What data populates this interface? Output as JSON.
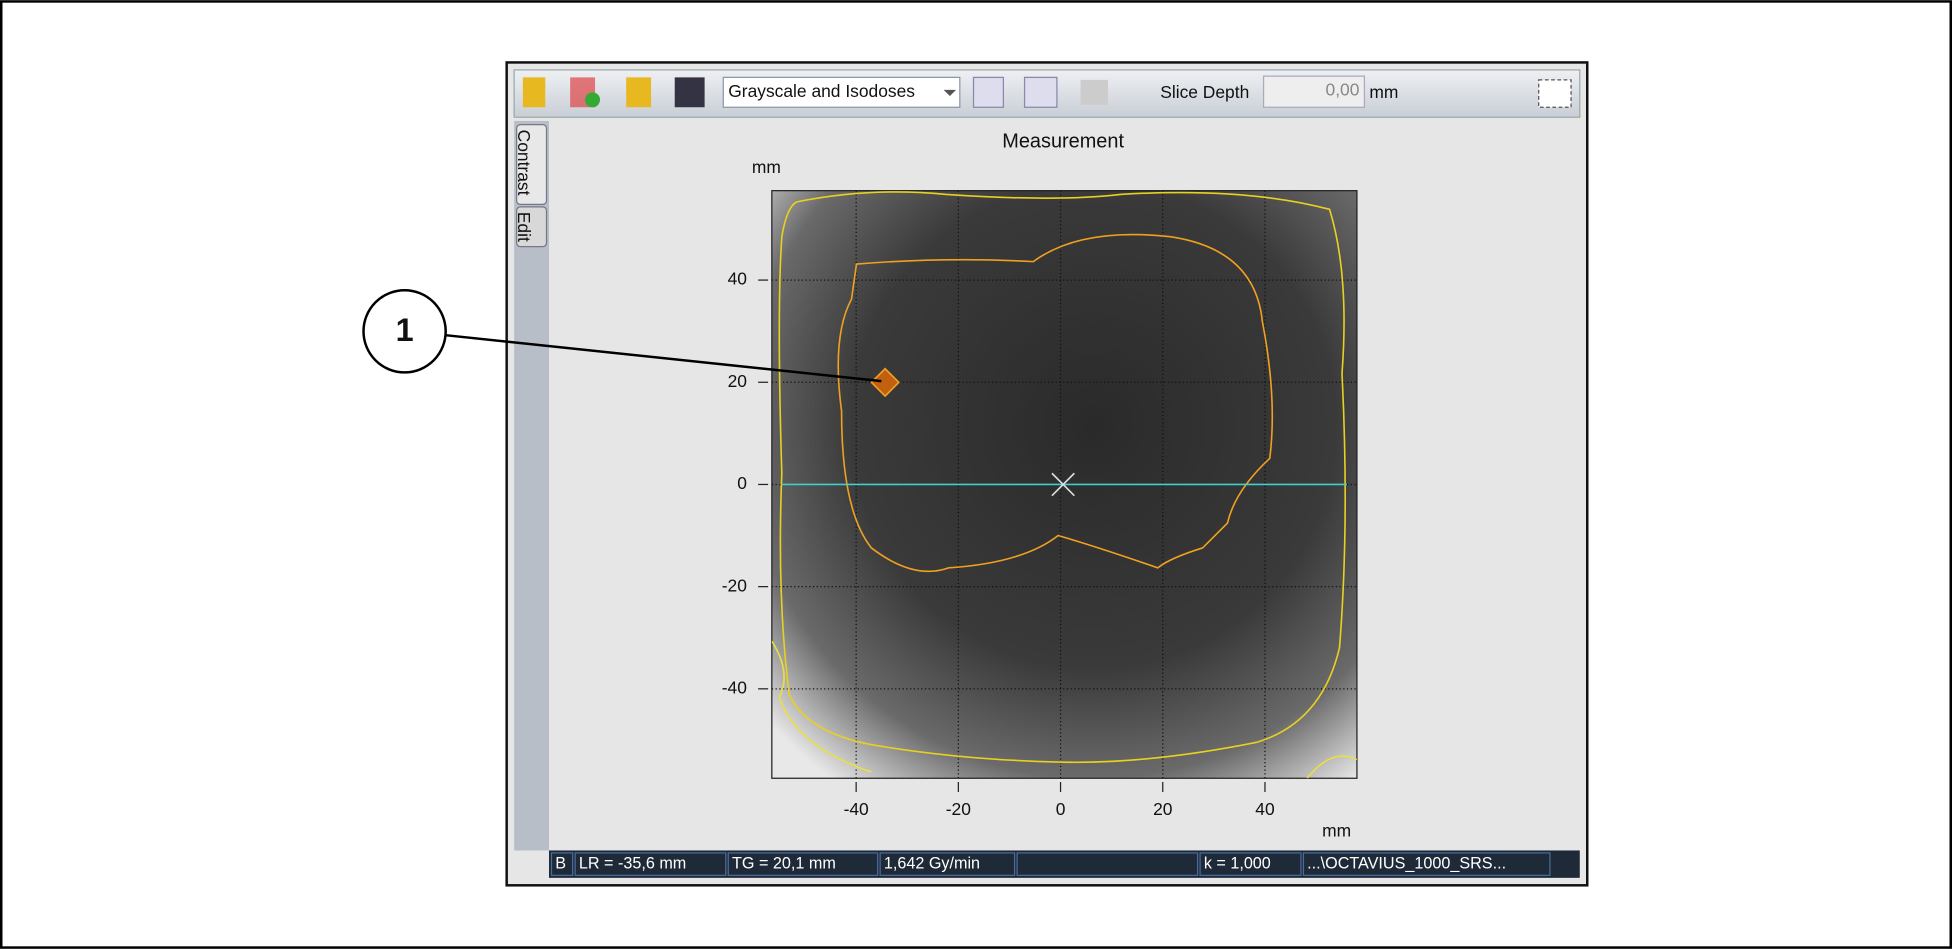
{
  "callout": "1",
  "toolbar": {
    "view_mode": "Grayscale and Isodoses",
    "slice_depth_label": "Slice Depth",
    "slice_depth_value": "0,00",
    "slice_depth_unit": "mm"
  },
  "side_tabs": [
    "Contrast",
    "Edit"
  ],
  "plot": {
    "title": "Measurement",
    "x_label": "mm",
    "y_label": "mm",
    "xlim": [
      -56.5,
      58
    ],
    "ylim": [
      -57.5,
      57.5
    ],
    "xticks": [
      -40,
      -20,
      0,
      20,
      40
    ],
    "yticks": [
      -40,
      -20,
      0,
      20,
      40
    ],
    "grid": true
  },
  "status_bar": [
    "B",
    "LR = -35,6 mm",
    "TG = 20,1 mm",
    "1,642 Gy/min",
    "k = 1,000",
    "...\\OCTAVIUS_1000_SRS..."
  ]
}
